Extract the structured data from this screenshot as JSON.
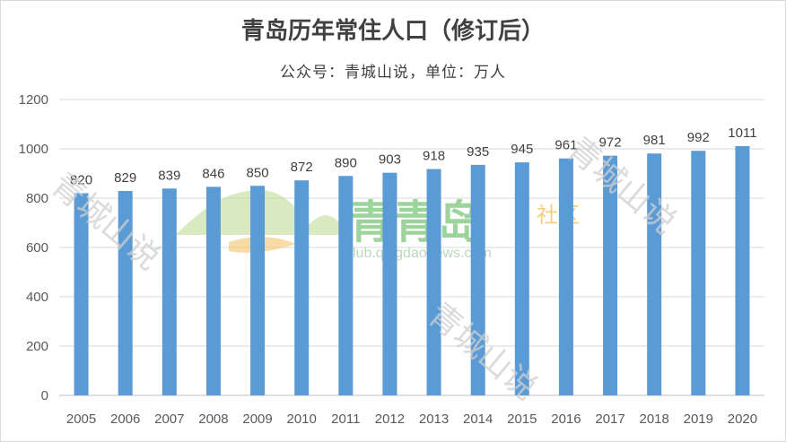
{
  "chart_data": {
    "type": "bar",
    "title": "青岛历年常住人口（修订后）",
    "subtitle": "公众号：青城山说，单位：万人",
    "categories": [
      "2005",
      "2006",
      "2007",
      "2008",
      "2009",
      "2010",
      "2011",
      "2012",
      "2013",
      "2014",
      "2015",
      "2016",
      "2017",
      "2018",
      "2019",
      "2020"
    ],
    "values": [
      820,
      829,
      839,
      846,
      850,
      872,
      890,
      903,
      918,
      935,
      945,
      961,
      972,
      981,
      992,
      1011
    ],
    "ylim": [
      0,
      1200
    ],
    "yticks": [
      0,
      200,
      400,
      600,
      800,
      1000,
      1200
    ],
    "grid": true,
    "data_labels": true,
    "bar_color": "#5b9bd5"
  },
  "watermarks": {
    "text": "青城山说",
    "logo_main": "青青岛",
    "logo_sub": "社区",
    "logo_url": "club.qingdaonews.com"
  }
}
